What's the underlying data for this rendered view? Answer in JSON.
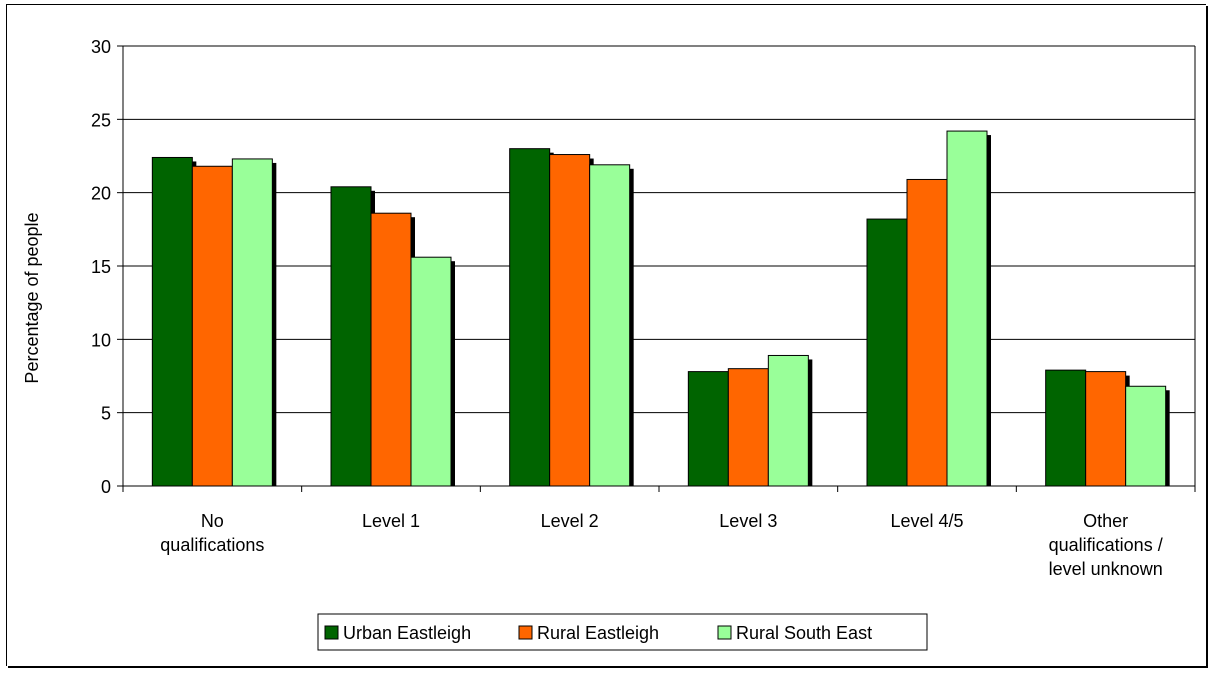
{
  "chart_data": {
    "type": "bar",
    "title": "",
    "xlabel": "",
    "ylabel": "Percentage of people",
    "ylim": [
      0,
      30
    ],
    "yticks": [
      0,
      5,
      10,
      15,
      20,
      25,
      30
    ],
    "grid": true,
    "legend_position": "bottom",
    "categories": [
      [
        "No",
        "qualifications"
      ],
      [
        "Level 1"
      ],
      [
        "Level 2"
      ],
      [
        "Level 3"
      ],
      [
        "Level 4/5"
      ],
      [
        "Other",
        "qualifications /",
        "level unknown"
      ]
    ],
    "series": [
      {
        "name": "Urban Eastleigh",
        "color": "#006400",
        "values": [
          22.4,
          20.4,
          23.0,
          7.8,
          18.2,
          7.9
        ]
      },
      {
        "name": "Rural Eastleigh",
        "color": "#ff6600",
        "values": [
          21.8,
          18.6,
          22.6,
          8.0,
          20.9,
          7.8
        ]
      },
      {
        "name": "Rural South East",
        "color": "#99ff99",
        "values": [
          22.3,
          15.6,
          21.9,
          8.9,
          24.2,
          6.8
        ]
      }
    ]
  }
}
